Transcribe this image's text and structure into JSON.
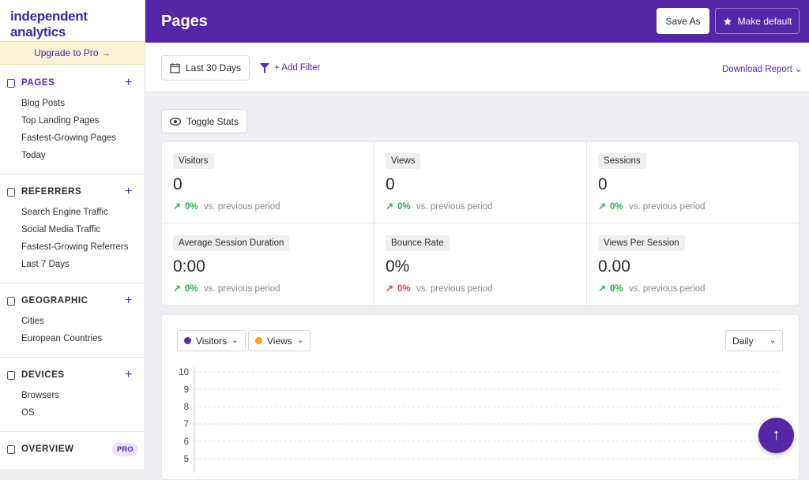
{
  "logo": "independent analytics",
  "upgrade": "Upgrade to Pro →",
  "sidebar": [
    {
      "title": "PAGES",
      "add": "+",
      "items": [
        "Blog Posts",
        "Top Landing Pages",
        "Fastest-Growing Pages",
        "Today"
      ]
    },
    {
      "title": "REFERRERS",
      "add": "+",
      "items": [
        "Search Engine Traffic",
        "Social Media Traffic",
        "Fastest-Growing Referrers",
        "Last 7 Days"
      ]
    },
    {
      "title": "GEOGRAPHIC",
      "add": "+",
      "items": [
        "Cities",
        "European Countries"
      ]
    },
    {
      "title": "DEVICES",
      "add": "+",
      "items": [
        "Browsers",
        "OS"
      ]
    },
    {
      "title": "OVERVIEW",
      "badge": "PRO",
      "items": []
    }
  ],
  "header": {
    "title": "Pages",
    "save_as": "Save As",
    "make_default": "Make default"
  },
  "toolbar": {
    "date_range": "Last 30 Days",
    "add_filter": "+ Add Filter",
    "download": "Download Report"
  },
  "toggle_stats": "Toggle Stats",
  "stats": [
    {
      "label": "Visitors",
      "value": "0",
      "change": "0%",
      "compare": "vs. previous period",
      "color": "#2bb24c"
    },
    {
      "label": "Views",
      "value": "0",
      "change": "0%",
      "compare": "vs. previous period",
      "color": "#2bb24c"
    },
    {
      "label": "Sessions",
      "value": "0",
      "change": "0%",
      "compare": "vs. previous period",
      "color": "#2bb24c"
    },
    {
      "label": "Average Session Duration",
      "value": "0:00",
      "change": "0%",
      "compare": "vs. previous period",
      "color": "#2bb24c"
    },
    {
      "label": "Bounce Rate",
      "value": "0%",
      "change": "0%",
      "compare": "vs. previous period",
      "color": "#e2443b"
    },
    {
      "label": "Views Per Session",
      "value": "0.00",
      "change": "0%",
      "compare": "vs. previous period",
      "color": "#2bb24c"
    }
  ],
  "chart": {
    "series": [
      {
        "name": "Visitors",
        "color": "#5b2aa8"
      },
      {
        "name": "Views",
        "color": "#f0a21a"
      }
    ],
    "interval": "Daily",
    "yticks": [
      10,
      9,
      8,
      7,
      6,
      5
    ]
  }
}
